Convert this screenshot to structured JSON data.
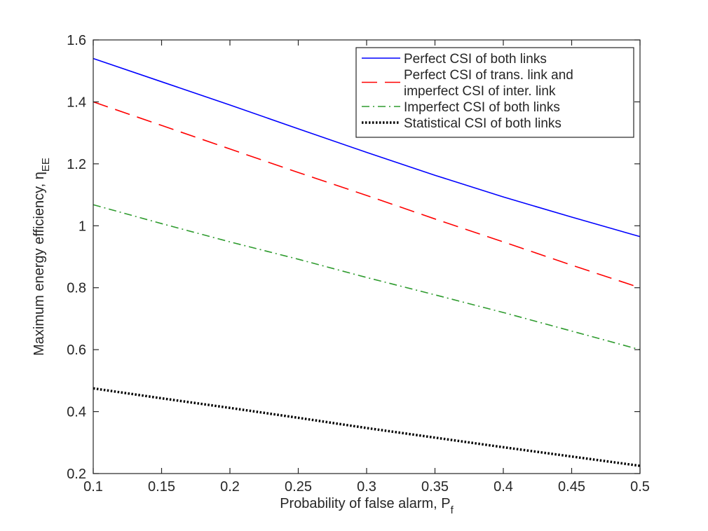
{
  "chart_data": {
    "type": "line",
    "xlabel": "Probability of false alarm, P",
    "xlabel_sub": "f",
    "ylabel": "Maximum energy efficiency, η",
    "ylabel_sub": "EE",
    "xlim": [
      0.1,
      0.5
    ],
    "ylim": [
      0.2,
      1.6
    ],
    "xticks": [
      "0.1",
      "0.15",
      "0.2",
      "0.25",
      "0.3",
      "0.35",
      "0.4",
      "0.45",
      "0.5"
    ],
    "yticks": [
      "0.2",
      "0.4",
      "0.6",
      "0.8",
      "1",
      "1.2",
      "1.4",
      "1.6"
    ],
    "grid": false,
    "legend_position": "top-right",
    "x": [
      0.1,
      0.15,
      0.2,
      0.25,
      0.3,
      0.35,
      0.4,
      0.45,
      0.5
    ],
    "series": [
      {
        "name": "Perfect CSI of both links",
        "legend_lines": [
          "Perfect CSI of both links"
        ],
        "color": "#0000ff",
        "style": "solid",
        "values": [
          1.54,
          1.465,
          1.39,
          1.313,
          1.237,
          1.163,
          1.093,
          1.028,
          0.965
        ]
      },
      {
        "name": "Perfect CSI of trans. link and imperfect CSI of inter. link",
        "legend_lines": [
          "Perfect CSI of trans. link and",
          "imperfect CSI of inter. link"
        ],
        "color": "#ff0000",
        "style": "dashed",
        "values": [
          1.4,
          1.324,
          1.248,
          1.172,
          1.098,
          1.022,
          0.948,
          0.873,
          0.8
        ]
      },
      {
        "name": "Imperfect CSI of both links",
        "legend_lines": [
          "Imperfect CSI of both links"
        ],
        "color": "#2e9b2e",
        "style": "dashdot",
        "values": [
          1.068,
          1.007,
          0.948,
          0.892,
          0.833,
          0.777,
          0.72,
          0.66,
          0.6
        ]
      },
      {
        "name": "Statistical CSI of both links",
        "legend_lines": [
          "Statistical CSI of both links"
        ],
        "color": "#000000",
        "style": "dotted",
        "values": [
          0.475,
          0.443,
          0.412,
          0.38,
          0.347,
          0.316,
          0.285,
          0.255,
          0.225
        ]
      }
    ]
  }
}
